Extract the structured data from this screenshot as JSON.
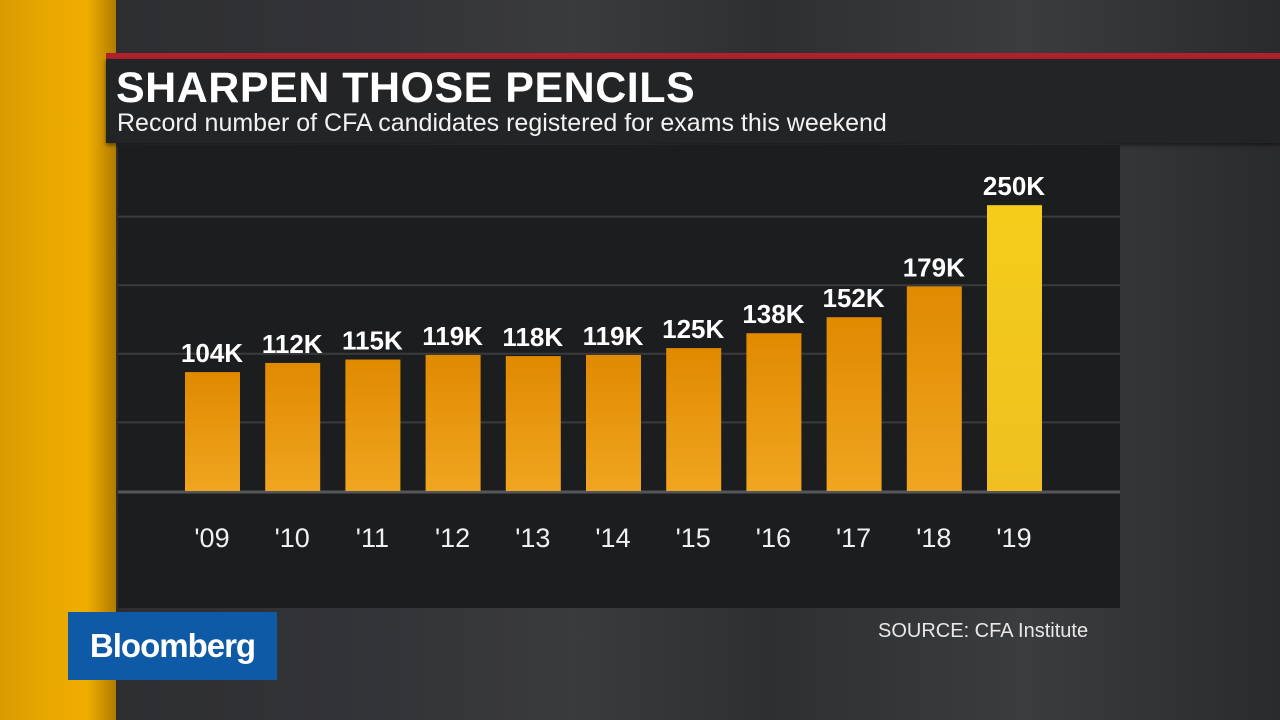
{
  "header": {
    "title": "SHARPEN THOSE PENCILS",
    "subtitle": "Record number of CFA candidates registered for exams this weekend"
  },
  "source": "SOURCE: CFA Institute",
  "brand": "Bloomberg",
  "colors": {
    "bar": "#e58f00",
    "highlight_bar": "#f2c418",
    "accent_red": "#b0212b",
    "brand_blue": "#0f5aa6"
  },
  "chart_data": {
    "type": "bar",
    "title": "SHARPEN THOSE PENCILS",
    "subtitle": "Record number of CFA candidates registered for exams this weekend",
    "categories": [
      "'09",
      "'10",
      "'11",
      "'12",
      "'13",
      "'14",
      "'15",
      "'16",
      "'17",
      "'18",
      "'19"
    ],
    "values": [
      104,
      112,
      115,
      119,
      118,
      119,
      125,
      138,
      152,
      179,
      250
    ],
    "data_labels": [
      "104K",
      "112K",
      "115K",
      "119K",
      "118K",
      "119K",
      "125K",
      "138K",
      "152K",
      "179K",
      "250K"
    ],
    "unit": "thousands",
    "ylim": [
      0,
      300
    ],
    "gridlines": [
      60,
      120,
      180,
      240
    ],
    "grid": true,
    "highlight_index": 10
  }
}
